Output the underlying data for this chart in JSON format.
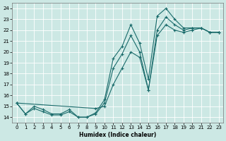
{
  "bg_color": "#cce8e4",
  "grid_color": "#b0d8d4",
  "line_color": "#1a6b6b",
  "xlabel": "Humidex (Indice chaleur)",
  "xlim": [
    -0.5,
    23.5
  ],
  "ylim": [
    13.5,
    24.5
  ],
  "xticks": [
    0,
    1,
    2,
    3,
    4,
    5,
    6,
    7,
    8,
    9,
    10,
    11,
    12,
    13,
    14,
    15,
    16,
    17,
    18,
    19,
    20,
    21,
    22,
    23
  ],
  "yticks": [
    14,
    15,
    16,
    17,
    18,
    19,
    20,
    21,
    22,
    23,
    24
  ],
  "line1_x": [
    0,
    1,
    2,
    3,
    4,
    5,
    6,
    7,
    8,
    9,
    10,
    11,
    12,
    13,
    14,
    15,
    16,
    17,
    18,
    19,
    20,
    21,
    22,
    23
  ],
  "line1_y": [
    15.3,
    14.3,
    15.0,
    14.7,
    14.3,
    14.3,
    14.7,
    14.0,
    14.0,
    14.4,
    15.6,
    19.4,
    20.5,
    22.5,
    20.8,
    17.5,
    23.3,
    24.0,
    23.0,
    22.2,
    22.2,
    22.2,
    21.8,
    21.8
  ],
  "line2_x": [
    0,
    1,
    2,
    3,
    4,
    5,
    6,
    7,
    8,
    9,
    10,
    11,
    12,
    13,
    14,
    15,
    16,
    17,
    18,
    19,
    20,
    21,
    22,
    23
  ],
  "line2_y": [
    15.3,
    14.3,
    14.8,
    14.5,
    14.2,
    14.2,
    14.5,
    14.0,
    14.0,
    14.3,
    15.3,
    18.5,
    19.8,
    21.5,
    20.0,
    16.5,
    22.0,
    23.2,
    22.5,
    22.0,
    22.2,
    22.2,
    21.8,
    21.8
  ],
  "line3_x": [
    0,
    9,
    10,
    11,
    12,
    13,
    14,
    15,
    16,
    17,
    18,
    19,
    20,
    21,
    22,
    23
  ],
  "line3_y": [
    15.3,
    14.8,
    15.0,
    17.0,
    18.5,
    20.0,
    19.5,
    16.5,
    21.5,
    22.5,
    22.0,
    21.8,
    22.0,
    22.2,
    21.8,
    21.8
  ]
}
